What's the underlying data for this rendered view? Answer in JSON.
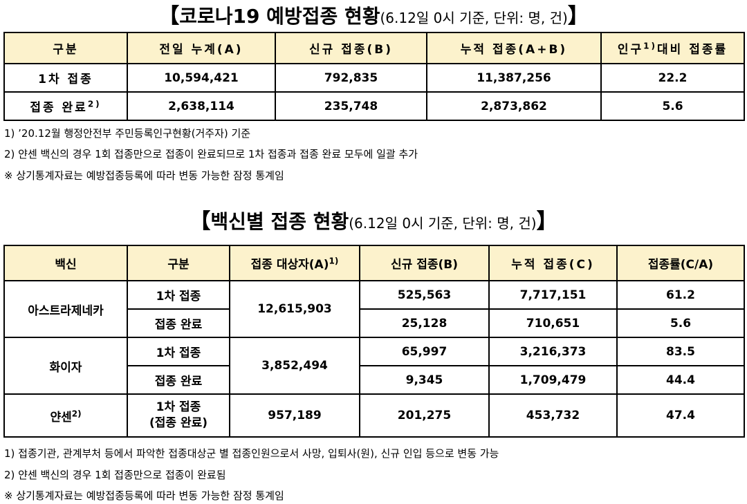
{
  "section1": {
    "title_open": "【",
    "title_main": "코로나19 예방접종 현황",
    "title_sub": "(6.12일 0시 기준, 단위: 명, 건)",
    "title_close": "】",
    "headers": [
      "구분",
      "전일 누계(A)",
      "신규 접종(B)",
      "누적 접종(A+B)",
      "인구",
      "1)",
      "대비 접종률"
    ],
    "rows": [
      {
        "label": "1차 접종",
        "label_sup": "",
        "prev": "10,594,421",
        "new": "792,835",
        "cum": "11,387,256",
        "rate": "22.2"
      },
      {
        "label": "접종 완료",
        "label_sup": "2)",
        "prev": "2,638,114",
        "new": "235,748",
        "cum": "2,873,862",
        "rate": "5.6"
      }
    ],
    "notes": [
      "1) ’20.12월 행정안전부 주민등록인구현황(거주자) 기준",
      "2) 얀센 백신의 경우 1회 접종만으로 접종이 완료되므로 1차 접종과 접종 완료 모두에 일괄 추가",
      "※ 상기통계자료는 예방접종등록에 따라 변동 가능한 잠정 통계임"
    ]
  },
  "section2": {
    "title_open": "【",
    "title_main": "백신별 접종 현황",
    "title_sub": "(6.12일 0시 기준, 단위: 명, 건)",
    "title_close": "】",
    "headers": [
      "백신",
      "구분",
      "접종 대상자(A)",
      "1)",
      "신규 접종(B)",
      "누적 접종(C)",
      "접종률(C/A)"
    ],
    "vaccines": [
      {
        "name": "아스트라제네카",
        "name_sup": "",
        "target": "12,615,903",
        "rows": [
          {
            "type": "1차 접종",
            "new": "525,563",
            "cum": "7,717,151",
            "rate": "61.2"
          },
          {
            "type": "접종 완료",
            "new": "25,128",
            "cum": "710,651",
            "rate": "5.6"
          }
        ]
      },
      {
        "name": "화이자",
        "name_sup": "",
        "target": "3,852,494",
        "rows": [
          {
            "type": "1차 접종",
            "new": "65,997",
            "cum": "3,216,373",
            "rate": "83.5"
          },
          {
            "type": "접종 완료",
            "new": "9,345",
            "cum": "1,709,479",
            "rate": "44.4"
          }
        ]
      },
      {
        "name": "얀센",
        "name_sup": "2)",
        "target": "957,189",
        "rows": [
          {
            "type": "1차 접종",
            "type_line2": "(접종 완료)",
            "new": "201,275",
            "cum": "453,732",
            "rate": "47.4"
          }
        ]
      }
    ],
    "notes": [
      "1) 접종기관, 관계부처 등에서 파악한 접종대상군 별 접종인원으로서 사망, 입퇴사(원), 신규 인입 등으로 변동 가능",
      "2) 얀센 백신의 경우 1회 접종만으로 접종이 완료됨",
      "※ 상기통계자료는 예방접종등록에 따라 변동 가능한 잠정 통계임"
    ]
  }
}
